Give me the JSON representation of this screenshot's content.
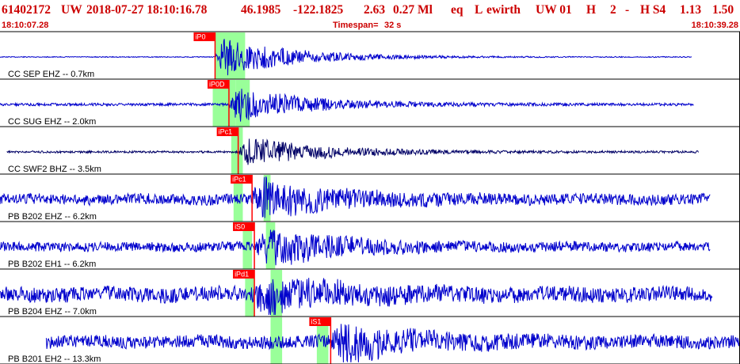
{
  "header": {
    "event_id": "61402172",
    "network": "UW",
    "datetime": "2018-07-27 18:10:16.78",
    "lat": "46.1985",
    "lon": "-122.1825",
    "depth": "2.63",
    "magnitude": "0.27 Ml",
    "etype": "eq",
    "review": "L",
    "analyst": "ewirth",
    "source": "UW 01",
    "quality": "H",
    "field1": "2",
    "field2": "-",
    "field3": "H S4",
    "field4": "1.13",
    "field5": "1.50"
  },
  "time_axis": {
    "start": "18:10:07.28",
    "end": "18:10:39.28",
    "timespan_label": "Timespan=",
    "timespan_value": "32 s"
  },
  "colors": {
    "header_text": "#cc0000",
    "trace_blue": "#0000cc",
    "trace_dark": "#000066",
    "pick_red": "#ff0000",
    "window_green": "#99ff99",
    "separator": "#000000"
  },
  "chart_data": {
    "type": "line",
    "xlim": [
      0,
      32
    ],
    "x_unit": "seconds after 18:10:07.28",
    "series": [
      {
        "name": "CC SEP EHZ -- 0.7km",
        "p_time": 9.3,
        "p_label": "iP0",
        "s_time": 10.6,
        "s_label": null,
        "trace_start": 0.0,
        "trace_end": 29.9,
        "noise": 0.02,
        "amp": 1.0,
        "color": "trace_blue",
        "windows": [
          [
            9.3,
            10.6
          ]
        ]
      },
      {
        "name": "CC SUG EHZ -- 2.0km",
        "p_time": 9.9,
        "p_label": "iP0D",
        "s_time": 12.8,
        "s_label": null,
        "trace_start": 0.0,
        "trace_end": 30.0,
        "noise": 0.06,
        "amp": 0.85,
        "color": "trace_blue",
        "windows": [
          [
            9.2,
            10.2
          ],
          [
            10.2,
            10.8
          ]
        ]
      },
      {
        "name": "CC SWF2 BHZ -- 3.5km",
        "p_time": 10.3,
        "p_label": "iPc1",
        "s_time": 12.4,
        "s_label": null,
        "trace_start": 0.3,
        "trace_end": 30.2,
        "noise": 0.05,
        "amp": 0.8,
        "color": "trace_dark",
        "windows": [
          [
            10.0,
            10.5
          ]
        ]
      },
      {
        "name": "PB B202 EHZ -- 6.2km",
        "p_time": 10.9,
        "p_label": "iPc1",
        "s_time": 11.3,
        "s_label": null,
        "trace_start": 0.0,
        "trace_end": 30.7,
        "noise": 0.25,
        "amp": 0.9,
        "color": "trace_blue",
        "windows": [
          [
            10.1,
            10.5
          ],
          [
            11.4,
            11.7
          ]
        ]
      },
      {
        "name": "PB B202 EH1 -- 6.2km",
        "p_time": 11.0,
        "p_label": "iS0",
        "s_time": 12.0,
        "s_label": null,
        "trace_start": 0.0,
        "trace_end": 30.7,
        "noise": 0.22,
        "amp": 0.9,
        "color": "trace_blue",
        "windows": [
          [
            10.5,
            10.9
          ],
          [
            11.5,
            11.9
          ]
        ]
      },
      {
        "name": "PB B204 EHZ -- 7.0km",
        "p_time": 11.0,
        "p_label": "iPd1",
        "s_time": 12.5,
        "s_label": null,
        "trace_start": 0.0,
        "trace_end": 30.8,
        "noise": 0.35,
        "amp": 0.85,
        "color": "trace_blue",
        "windows": [
          [
            10.6,
            11.0
          ],
          [
            11.7,
            12.2
          ]
        ]
      },
      {
        "name": "PB B201 EH2 -- 13.3km",
        "p_time": 14.3,
        "p_label": "iS1",
        "s_time": 14.3,
        "s_label": null,
        "trace_start": 2.0,
        "trace_end": 32.0,
        "noise": 0.3,
        "amp": 0.8,
        "color": "trace_blue",
        "windows": [
          [
            11.7,
            12.2
          ],
          [
            13.7,
            14.2
          ]
        ]
      }
    ]
  }
}
